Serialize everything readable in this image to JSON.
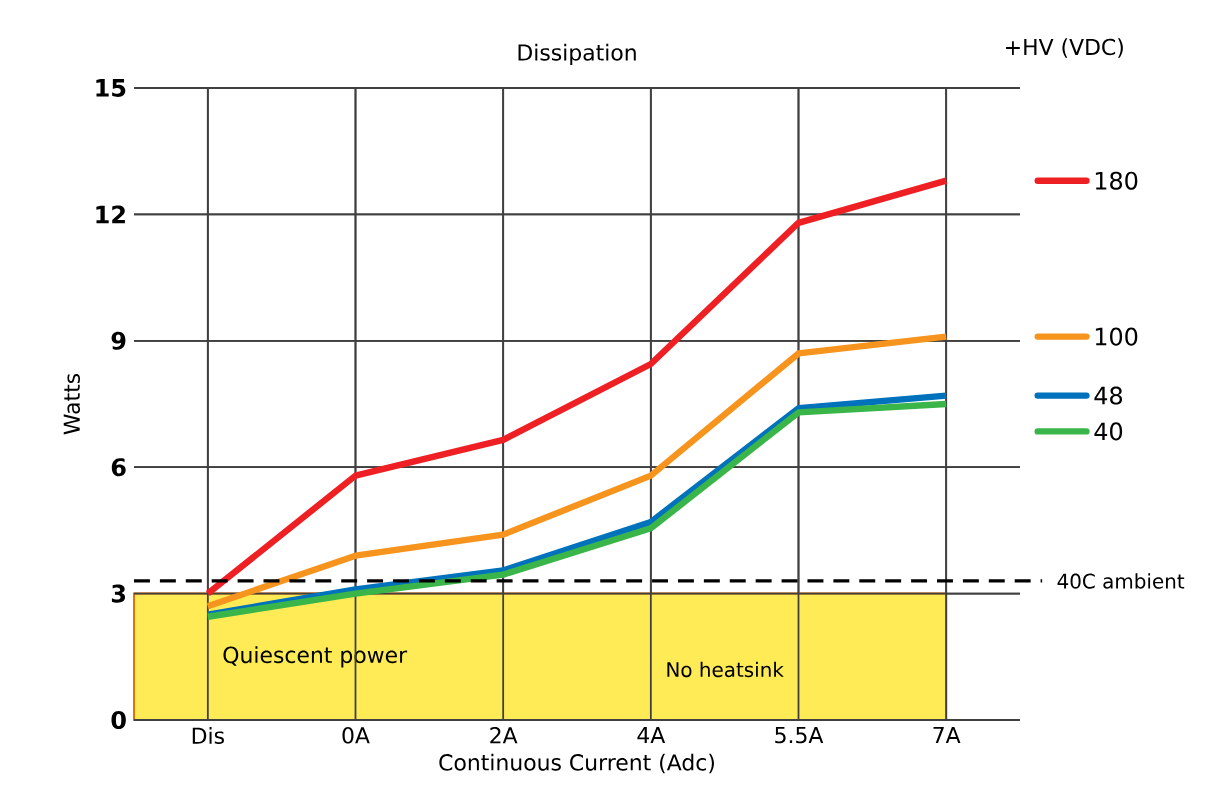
{
  "chart_data": {
    "type": "line",
    "title": "Dissipation",
    "legend_title": "+HV (VDC)",
    "xlabel": "Continuous Current (Adc)",
    "ylabel": "Watts",
    "categories": [
      "Dis",
      "0A",
      "2A",
      "4A",
      "5.5A",
      "7A"
    ],
    "series": [
      {
        "name": "180",
        "color": "#ee2024",
        "values": [
          3.0,
          5.8,
          6.65,
          8.45,
          11.8,
          12.8
        ]
      },
      {
        "name": "100",
        "color": "#f7941d",
        "values": [
          2.7,
          3.9,
          4.4,
          5.8,
          8.7,
          9.1
        ]
      },
      {
        "name": "48",
        "color": "#0072bc",
        "values": [
          2.5,
          3.1,
          3.55,
          4.7,
          7.4,
          7.7
        ]
      },
      {
        "name": "40",
        "color": "#39b54a",
        "values": [
          2.45,
          3.0,
          3.45,
          4.55,
          7.3,
          7.5
        ]
      }
    ],
    "ylim": [
      0,
      15
    ],
    "yticks": [
      0,
      3,
      6,
      9,
      12,
      15
    ],
    "grid": true,
    "legend": "right",
    "marker": "none",
    "line_style": "solid",
    "ref_lines": [
      {
        "axis": "y",
        "value": 3.3,
        "label": "40C ambient",
        "color": "#000000",
        "line_style": "dashed"
      }
    ],
    "bands": [
      {
        "axis": "y",
        "from": 0,
        "to": 3,
        "label": "Quiescent power",
        "color": "#ffeb55"
      }
    ],
    "annotations": [
      "No heatsink"
    ]
  }
}
